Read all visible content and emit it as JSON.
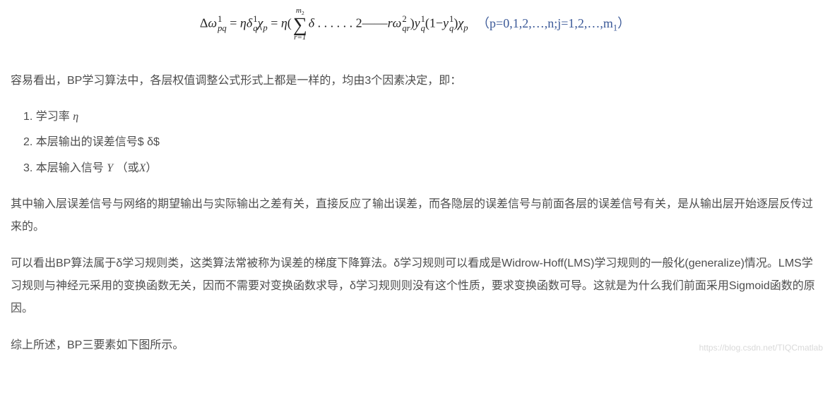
{
  "equation": {
    "delta": "Δ",
    "omega": "ω",
    "eq": " = ",
    "eta": "η",
    "deltaSmall": "δ",
    "chi": "χ",
    "sum_top": "m",
    "sum_top_sub": "2",
    "sum_bot": "r=1",
    "middle": " . . . . . . 2——",
    "r": "r",
    "y": "y",
    "lparen": "(1−",
    "rparen": ")",
    "link": "（p=0,1,2,…,n;j=1,2,…,m",
    "link_sub": "1",
    "link_close": "）"
  },
  "p1": "容易看出，BP学习算法中，各层权值调整公式形式上都是一样的，均由3个因素决定，即：",
  "list": {
    "i1a": "学习率 ",
    "i1b": "η",
    "i2": "本层输出的误差信号$ δ$",
    "i3a": "本层输入信号 ",
    "i3b": "Y",
    "i3c": " （或",
    "i3d": "X",
    "i3e": "）"
  },
  "p2": "其中输入层误差信号与网络的期望输出与实际输出之差有关，直接反应了输出误差，而各隐层的误差信号与前面各层的误差信号有关，是从输出层开始逐层反传过来的。",
  "p3": "可以看出BP算法属于δ学习规则类，这类算法常被称为误差的梯度下降算法。δ学习规则可以看成是Widrow-Hoff(LMS)学习规则的一般化(generalize)情况。LMS学习规则与神经元采用的变换函数无关，因而不需要对变换函数求导，δ学习规则则没有这个性质，要求变换函数可导。这就是为什么我们前面采用Sigmoid函数的原因。",
  "p4": "综上所述，BP三要素如下图所示。",
  "watermark": "https://blog.csdn.net/TIQCmatlab",
  "style": {
    "text_color": "#4d4d4d",
    "link_color": "#3b5998",
    "background": "#ffffff",
    "watermark_color": "#d9d9d9",
    "body_fontsize": 16,
    "eq_fontsize": 18
  }
}
